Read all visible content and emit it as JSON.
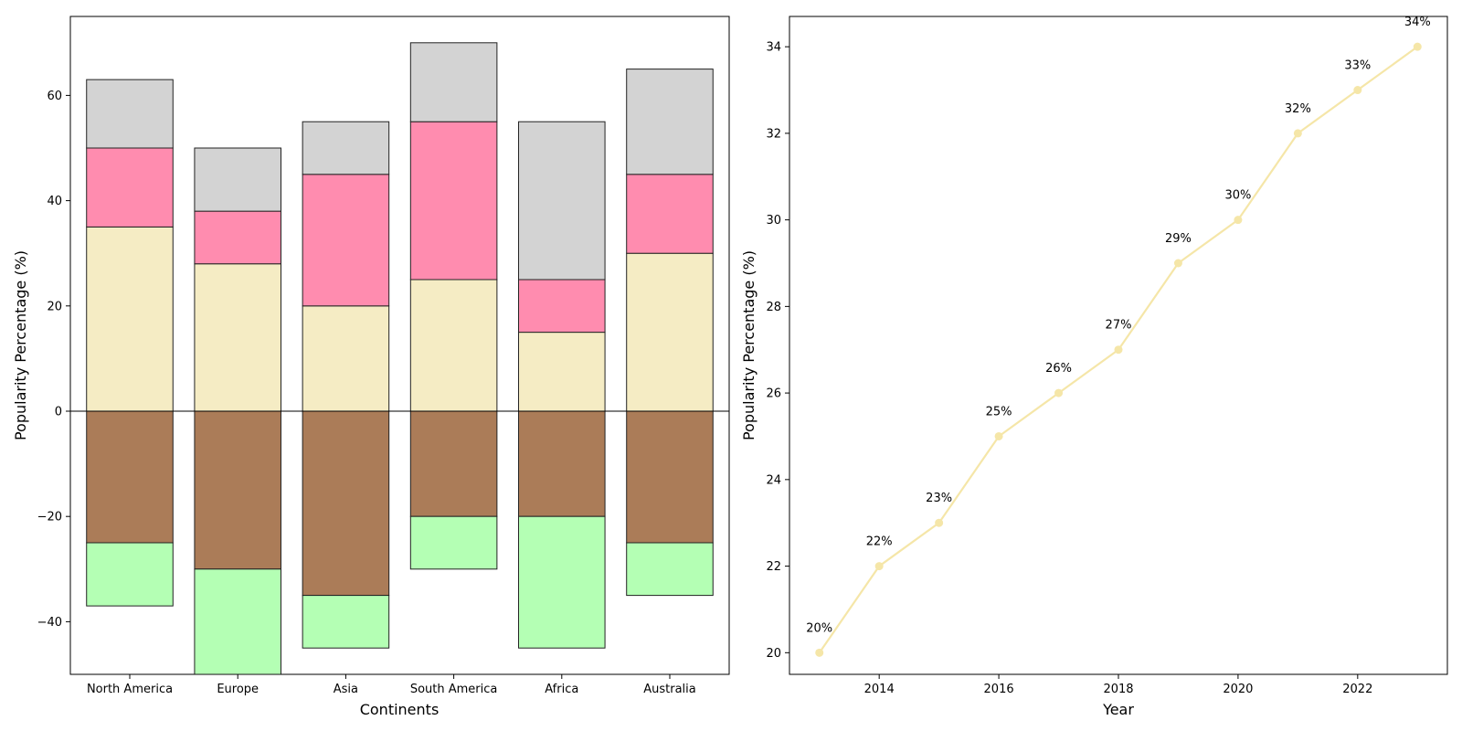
{
  "chart_data": [
    {
      "type": "bar",
      "stacked": true,
      "diverging": true,
      "title": "",
      "xlabel": "Continents",
      "ylabel": "Popularity Percentage (%)",
      "categories": [
        "North America",
        "Europe",
        "Asia",
        "South America",
        "Africa",
        "Australia"
      ],
      "ylim": [
        -50,
        75
      ],
      "yticks": [
        -40,
        -20,
        0,
        20,
        40,
        60
      ],
      "zero_line": true,
      "positive_series": [
        {
          "values": [
            35,
            28,
            20,
            25,
            15,
            30
          ],
          "color": "#f5ecc4"
        },
        {
          "values": [
            15,
            10,
            25,
            30,
            10,
            15
          ],
          "color": "#ff8caf"
        },
        {
          "values": [
            13,
            12,
            10,
            15,
            30,
            20
          ],
          "color": "#d3d3d3"
        }
      ],
      "negative_series": [
        {
          "values": [
            -25,
            -30,
            -35,
            -20,
            -20,
            -25
          ],
          "color": "#ab7c58"
        },
        {
          "values": [
            -12,
            -20,
            -10,
            -10,
            -25,
            -10
          ],
          "color": "#b4ffb4"
        }
      ],
      "edge_color": "#222222"
    },
    {
      "type": "line",
      "title": "",
      "xlabel": "Year",
      "ylabel": "Popularity Percentage (%)",
      "x": [
        2013,
        2014,
        2015,
        2016,
        2017,
        2018,
        2019,
        2020,
        2021,
        2022,
        2023
      ],
      "y": [
        20,
        22,
        23,
        25,
        26,
        27,
        29,
        30,
        32,
        33,
        34
      ],
      "data_labels": [
        "20%",
        "22%",
        "23%",
        "25%",
        "26%",
        "27%",
        "29%",
        "30%",
        "32%",
        "33%",
        "34%"
      ],
      "xlim": [
        2012.5,
        2023.5
      ],
      "ylim": [
        19.5,
        34.7
      ],
      "xticks": [
        2014,
        2016,
        2018,
        2020,
        2022
      ],
      "yticks": [
        20,
        22,
        24,
        26,
        28,
        30,
        32,
        34
      ],
      "color": "#f5e6a8"
    }
  ]
}
